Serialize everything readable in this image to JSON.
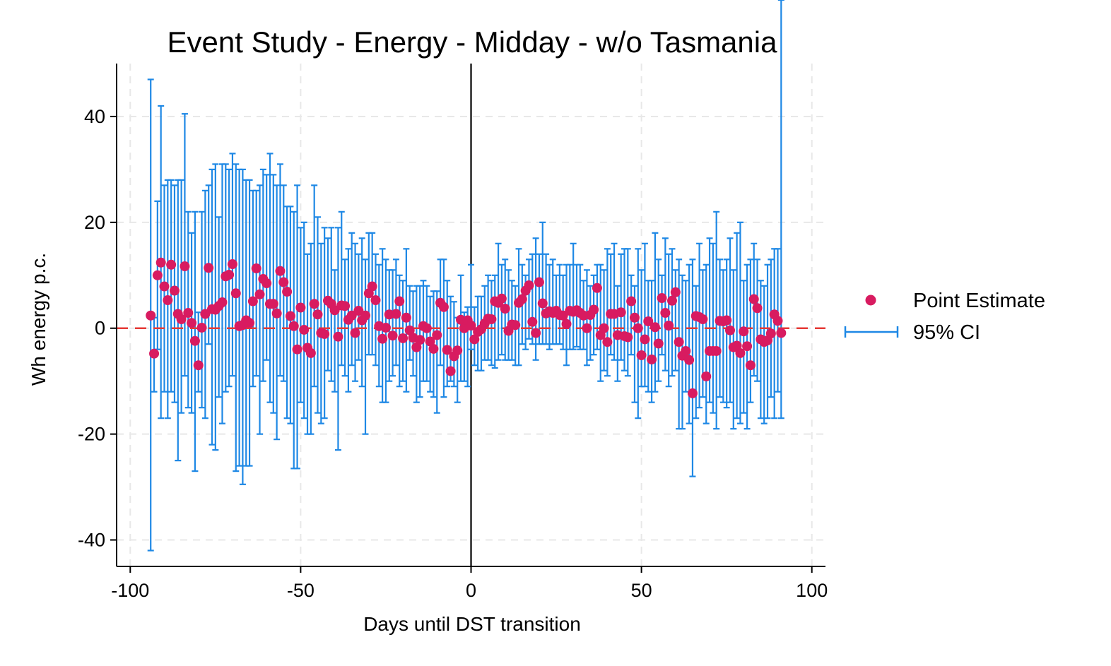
{
  "chart_data": {
    "type": "scatter",
    "title": "Event Study - Energy - Midday - w/o Tasmania",
    "xlabel": "Days until DST transition",
    "ylabel": "Wh energy p.c.",
    "xlim": [
      -104,
      104
    ],
    "ylim": [
      -45,
      50
    ],
    "xticks": [
      -100,
      -50,
      0,
      50,
      100
    ],
    "yticks": [
      -40,
      -20,
      0,
      20,
      40
    ],
    "xtick_labels": [
      "-100",
      "-50",
      "0",
      "50",
      "100"
    ],
    "ytick_labels": [
      "-40",
      "-20",
      "0",
      "20",
      "40"
    ],
    "grid": true,
    "legend": {
      "position": "right",
      "entries": [
        "Point Estimate",
        "95% CI"
      ]
    },
    "reference_lines": {
      "vertical_x": 0,
      "horizontal_y": 0
    },
    "colors": {
      "point": "#d81b60",
      "ci": "#1e88e5",
      "zero_line": "#e53935",
      "vline": "#000000",
      "grid": "#e8e8e8"
    },
    "series": [
      {
        "name": "Point Estimate",
        "x": [
          -94,
          -93,
          -92,
          -91,
          -90,
          -89,
          -88,
          -87,
          -86,
          -85,
          -84,
          -83,
          -82,
          -81,
          -80,
          -79,
          -78,
          -77,
          -76,
          -75,
          -74,
          -73,
          -72,
          -71,
          -70,
          -69,
          -68,
          -67,
          -66,
          -65,
          -64,
          -63,
          -62,
          -61,
          -60,
          -59,
          -58,
          -57,
          -56,
          -55,
          -54,
          -53,
          -52,
          -51,
          -50,
          -49,
          -48,
          -47,
          -46,
          -45,
          -44,
          -43,
          -42,
          -41,
          -40,
          -39,
          -38,
          -37,
          -36,
          -35,
          -34,
          -33,
          -32,
          -31,
          -30,
          -29,
          -28,
          -27,
          -26,
          -25,
          -24,
          -23,
          -22,
          -21,
          -20,
          -19,
          -18,
          -17,
          -16,
          -15,
          -14,
          -13,
          -12,
          -11,
          -10,
          -9,
          -8,
          -7,
          -6,
          -5,
          -4,
          -3,
          -2,
          -1,
          0,
          1,
          2,
          3,
          4,
          5,
          6,
          7,
          8,
          9,
          10,
          11,
          12,
          13,
          14,
          15,
          16,
          17,
          18,
          19,
          20,
          21,
          22,
          23,
          24,
          25,
          26,
          27,
          28,
          29,
          30,
          31,
          32,
          33,
          34,
          35,
          36,
          37,
          38,
          39,
          40,
          41,
          42,
          43,
          44,
          45,
          46,
          47,
          48,
          49,
          50,
          51,
          52,
          53,
          54,
          55,
          56,
          57,
          58,
          59,
          60,
          61,
          62,
          63,
          64,
          65,
          66,
          67,
          68,
          69,
          70,
          71,
          72,
          73,
          74,
          75,
          76,
          77,
          78,
          79,
          80,
          81,
          82,
          83,
          84,
          85,
          86,
          87,
          88,
          89,
          90,
          91
        ],
        "values": [
          2.4,
          -4.8,
          10.0,
          12.4,
          7.9,
          5.3,
          12.0,
          7.1,
          2.7,
          1.7,
          11.7,
          2.9,
          1.0,
          -2.4,
          -7.0,
          0.1,
          2.7,
          11.4,
          3.6,
          3.5,
          4.2,
          4.9,
          9.8,
          10.1,
          12.1,
          6.6,
          0.4,
          0.6,
          1.5,
          1.0,
          5.1,
          11.3,
          6.4,
          9.3,
          8.5,
          4.6,
          4.6,
          2.8,
          10.8,
          8.7,
          6.9,
          2.3,
          0.4,
          -4.0,
          3.9,
          -0.3,
          -3.7,
          -4.7,
          4.6,
          2.6,
          -0.9,
          -1.1,
          5.2,
          4.6,
          3.4,
          -1.6,
          4.3,
          4.2,
          1.6,
          2.4,
          -0.9,
          3.3,
          1.5,
          2.4,
          6.6,
          7.9,
          5.3,
          0.4,
          -2.0,
          0.1,
          2.6,
          -1.4,
          2.7,
          5.1,
          -1.9,
          2.0,
          -0.4,
          -1.8,
          -3.6,
          -2.2,
          0.4,
          0.0,
          -2.5,
          -3.9,
          -1.3,
          4.8,
          4.0,
          -4.1,
          -8.1,
          -5.3,
          -4.2,
          1.6,
          0.0,
          1.5,
          0.5,
          -2.1,
          -0.7,
          -0.2,
          0.9,
          1.8,
          1.7,
          5.1,
          4.8,
          5.6,
          3.7,
          -0.5,
          0.7,
          0.6,
          4.8,
          5.5,
          7.1,
          8.1,
          1.2,
          -0.9,
          8.7,
          4.7,
          2.8,
          3.2,
          2.9,
          3.3,
          2.5,
          2.4,
          0.8,
          3.3,
          3.1,
          3.4,
          2.9,
          2.4,
          0.0,
          2.5,
          3.5,
          7.6,
          -1.3,
          0.0,
          -2.6,
          2.7,
          2.7,
          -1.3,
          3.0,
          -1.5,
          -1.7,
          5.1,
          2.0,
          0.0,
          -5.1,
          -2.1,
          1.3,
          -5.9,
          0.2,
          -2.9,
          5.7,
          2.9,
          0.5,
          5.2,
          6.8,
          -2.6,
          -5.2,
          -4.3,
          -6.0,
          -12.3,
          2.3,
          2.1,
          1.7,
          -9.1,
          -4.3,
          -4.3,
          -4.3,
          1.4,
          1.3,
          1.5,
          -0.4,
          -3.6,
          -3.3,
          -4.7,
          -0.6,
          -3.4,
          -7.0,
          5.5,
          3.8,
          -2.1,
          -2.6,
          -2.3,
          -1.0,
          2.6,
          1.4,
          -0.9
        ],
        "ci_lower": [
          -42.0,
          -12.0,
          -4.0,
          -17.0,
          -12.0,
          -17.0,
          -12.0,
          -14.0,
          -25.0,
          -16.0,
          -9.0,
          -15.0,
          -16.0,
          -27.0,
          -12.0,
          -15.0,
          -17.0,
          -3.0,
          -22.0,
          -23.0,
          -13.0,
          -18.0,
          -12.0,
          -11.0,
          -9.0,
          -27.0,
          -26.0,
          -29.5,
          -26.0,
          -26.0,
          -11.0,
          -9.0,
          -20.0,
          -10.0,
          -6.0,
          -14.0,
          -16.0,
          -21.0,
          -9.0,
          -10.0,
          -17.0,
          -18.0,
          -26.5,
          -26.5,
          -14.0,
          -17.0,
          -20.0,
          -20.0,
          -11.0,
          -16.0,
          -18.0,
          -17.0,
          -8.0,
          -10.0,
          -12.0,
          -23.0,
          -7.0,
          -9.0,
          -12.0,
          -7.0,
          -10.0,
          -6.0,
          -11.0,
          -20.0,
          -5.0,
          -5.0,
          -7.0,
          -11.0,
          -14.0,
          -14.0,
          -10.0,
          -9.0,
          -7.0,
          -11.0,
          -10.0,
          -12.0,
          -6.0,
          -9.0,
          -14.0,
          -13.0,
          -10.0,
          -10.0,
          -12.0,
          -13.0,
          -16.0,
          -7.0,
          -13.0,
          -11.0,
          -10.0,
          -11.0,
          -14.0,
          -10.0,
          -10.0,
          -11.0,
          -4.0,
          -7.0,
          -8.0,
          -8.0,
          -6.0,
          -6.0,
          -7.0,
          -7.5,
          -6.0,
          -5.0,
          -6.0,
          -6.0,
          -6.0,
          -7.0,
          -7.0,
          -3.0,
          -4.0,
          -2.0,
          -3.0,
          -6.0,
          -3.0,
          -3.0,
          -3.0,
          -4.0,
          -3.0,
          -3.0,
          -3.0,
          -4.0,
          -7.0,
          -4.0,
          -4.0,
          -3.5,
          -4.0,
          -4.0,
          -7.0,
          -6.0,
          -5.0,
          -4.0,
          -10.0,
          -8.0,
          -9.0,
          -5.0,
          -6.0,
          -10.0,
          -6.0,
          -8.0,
          -9.0,
          -5.0,
          -14.0,
          -17.0,
          -11.0,
          -11.0,
          -12.0,
          -14.0,
          -12.0,
          -10.0,
          -5.0,
          -8.0,
          -11.0,
          -9.0,
          -8.0,
          -19.0,
          -19.0,
          -12.0,
          -18.0,
          -28.0,
          -17.0,
          -15.0,
          -13.0,
          -18.0,
          -14.0,
          -16.0,
          -19.0,
          -13.0,
          -14.0,
          -15.0,
          -14.0,
          -19.0,
          -17.0,
          -18.0,
          -16.0,
          -19.0,
          -14.0,
          -9.0,
          -10.0,
          -17.0,
          -18.0,
          -17.0,
          -13.0,
          -17.0,
          -12.0,
          -17.0
        ],
        "ci_upper": [
          47.0,
          2.0,
          24.0,
          42.0,
          27.0,
          28.0,
          28.0,
          27.0,
          28.0,
          28.0,
          40.5,
          22.0,
          18.0,
          22.0,
          3.0,
          22.0,
          26.0,
          27.0,
          30.0,
          31.0,
          21.0,
          31.0,
          31.0,
          30.0,
          33.0,
          31.0,
          30.0,
          30.0,
          28.0,
          28.0,
          26.0,
          26.0,
          27.0,
          30.0,
          29.0,
          33.0,
          29.0,
          27.0,
          31.0,
          27.0,
          23.0,
          23.0,
          22.0,
          27.0,
          19.0,
          20.0,
          14.0,
          16.0,
          27.0,
          21.0,
          16.0,
          19.0,
          17.0,
          19.0,
          11.0,
          19.0,
          22.0,
          13.0,
          15.0,
          18.0,
          16.0,
          14.0,
          17.0,
          13.0,
          18.0,
          18.0,
          14.0,
          12.0,
          15.0,
          13.0,
          11.0,
          11.0,
          13.0,
          10.0,
          9.0,
          15.0,
          8.0,
          7.0,
          8.0,
          8.0,
          9.0,
          8.0,
          6.0,
          7.0,
          7.0,
          13.0,
          13.0,
          9.0,
          6.0,
          5.0,
          2.0,
          10.0,
          3.0,
          4.0,
          12.0,
          4.0,
          6.0,
          6.0,
          8.0,
          10.0,
          9.0,
          10.0,
          16.0,
          12.0,
          13.0,
          11.0,
          9.0,
          8.0,
          15.0,
          12.0,
          10.0,
          13.0,
          14.0,
          17.0,
          14.0,
          20.0,
          14.0,
          12.0,
          13.0,
          10.0,
          12.0,
          10.0,
          12.0,
          12.0,
          16.0,
          12.0,
          12.0,
          9.0,
          11.0,
          8.0,
          10.0,
          12.0,
          12.0,
          11.0,
          15.0,
          14.0,
          16.0,
          8.0,
          14.0,
          15.0,
          15.0,
          10.0,
          8.0,
          15.0,
          11.0,
          16.0,
          9.0,
          9.0,
          18.0,
          13.0,
          10.0,
          17.0,
          14.0,
          15.0,
          11.0,
          13.0,
          10.0,
          9.0,
          12.0,
          13.0,
          8.0,
          16.0,
          11.0,
          12.0,
          17.0,
          16.0,
          22.0,
          13.0,
          11.0,
          13.0,
          17.0,
          11.0,
          18.0,
          20.0,
          9.0,
          12.0,
          13.0,
          16.0,
          13.0,
          9.0,
          8.0,
          12.0,
          13.0,
          15.0,
          15.0
        ]
      }
    ]
  }
}
